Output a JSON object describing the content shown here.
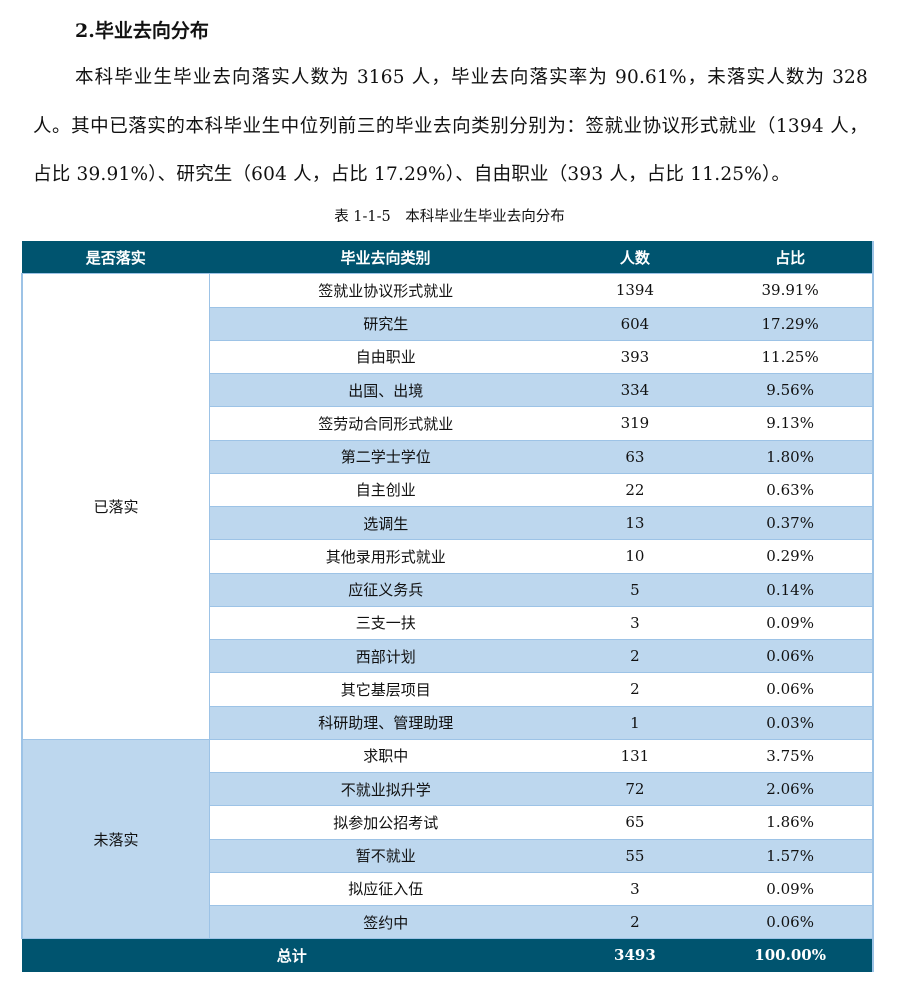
{
  "heading": "2.毕业去向分布",
  "paragraph": "本科毕业生毕业去向落实人数为 3165 人，毕业去向落实率为 90.61%，未落实人数为 328 人。其中已落实的本科毕业生中位列前三的毕业去向类别分别为：签就业协议形式就业（1394 人，占比 39.91%）、研究生（604 人，占比 17.29%）、自由职业（393 人，占比 11.25%）。",
  "caption": "表 1-1-5　本科毕业生毕业去向分布",
  "table": {
    "headers": [
      "是否落实",
      "毕业去向类别",
      "人数",
      "占比"
    ],
    "groups": [
      {
        "label": "已落实",
        "rows": [
          [
            "签就业协议形式就业",
            "1394",
            "39.91%"
          ],
          [
            "研究生",
            "604",
            "17.29%"
          ],
          [
            "自由职业",
            "393",
            "11.25%"
          ],
          [
            "出国、出境",
            "334",
            "9.56%"
          ],
          [
            "签劳动合同形式就业",
            "319",
            "9.13%"
          ],
          [
            "第二学士学位",
            "63",
            "1.80%"
          ],
          [
            "自主创业",
            "22",
            "0.63%"
          ],
          [
            "选调生",
            "13",
            "0.37%"
          ],
          [
            "其他录用形式就业",
            "10",
            "0.29%"
          ],
          [
            "应征义务兵",
            "5",
            "0.14%"
          ],
          [
            "三支一扶",
            "3",
            "0.09%"
          ],
          [
            "西部计划",
            "2",
            "0.06%"
          ],
          [
            "其它基层项目",
            "2",
            "0.06%"
          ],
          [
            "科研助理、管理助理",
            "1",
            "0.03%"
          ]
        ]
      },
      {
        "label": "未落实",
        "rows": [
          [
            "求职中",
            "131",
            "3.75%"
          ],
          [
            "不就业拟升学",
            "72",
            "2.06%"
          ],
          [
            "拟参加公招考试",
            "65",
            "1.86%"
          ],
          [
            "暂不就业",
            "55",
            "1.57%"
          ],
          [
            "拟应征入伍",
            "3",
            "0.09%"
          ],
          [
            "签约中",
            "2",
            "0.06%"
          ]
        ]
      }
    ],
    "total": [
      "总计",
      "3493",
      "100.00%"
    ]
  },
  "colors": {
    "header": "#00546f",
    "band": "#bdd7ee",
    "border": "#9dc3e6"
  }
}
